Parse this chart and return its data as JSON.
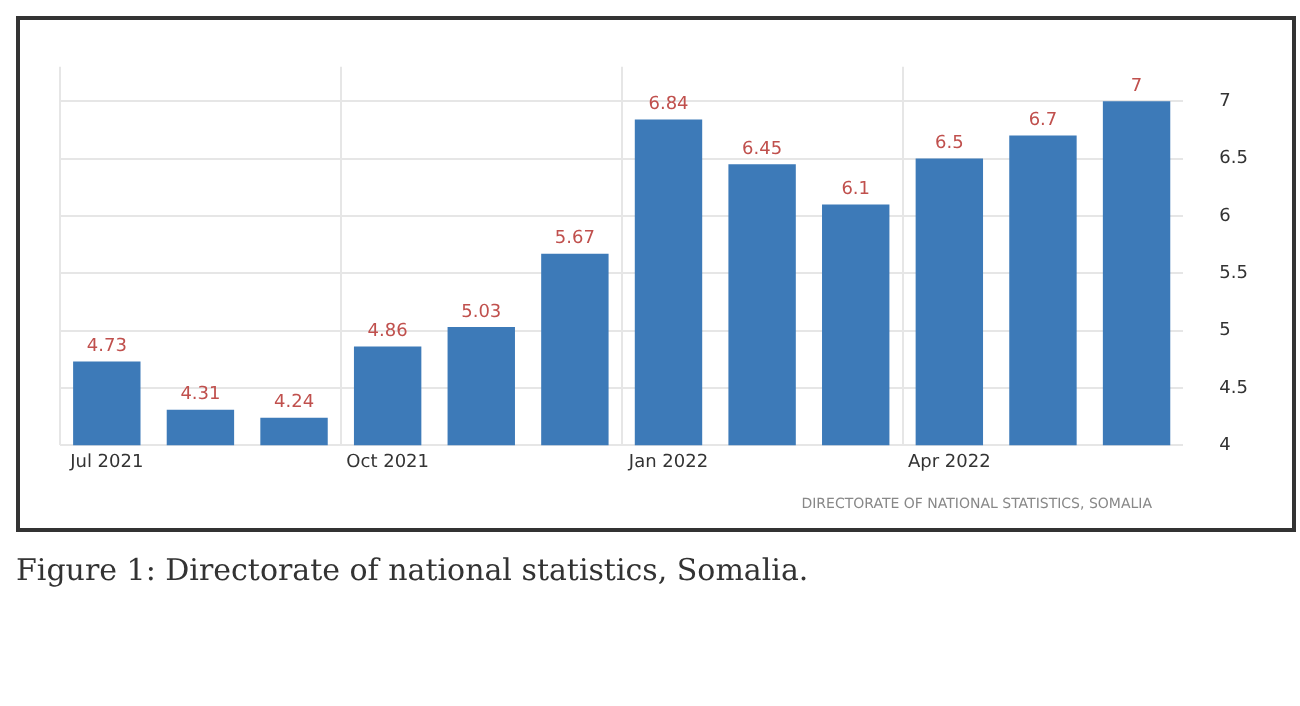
{
  "chart_data": {
    "type": "bar",
    "categories": [
      "Jul 2021",
      null,
      null,
      "Oct 2021",
      null,
      null,
      "Jan 2022",
      null,
      null,
      "Apr 2022",
      null,
      null
    ],
    "values": [
      4.73,
      4.31,
      4.24,
      4.86,
      5.03,
      5.67,
      6.84,
      6.45,
      6.1,
      6.5,
      6.7,
      7
    ],
    "color": "#3d7ab8",
    "ylim": [
      4,
      7.3
    ],
    "yticks": [
      4,
      4.5,
      5,
      5.5,
      6,
      6.5,
      7
    ],
    "grid": true,
    "data_labels": true,
    "annotations": [
      "DIRECTORATE OF NATIONAL STATISTICS, SOMALIA",
      "Figure 1: Directorate of national statistics, Somalia."
    ]
  }
}
